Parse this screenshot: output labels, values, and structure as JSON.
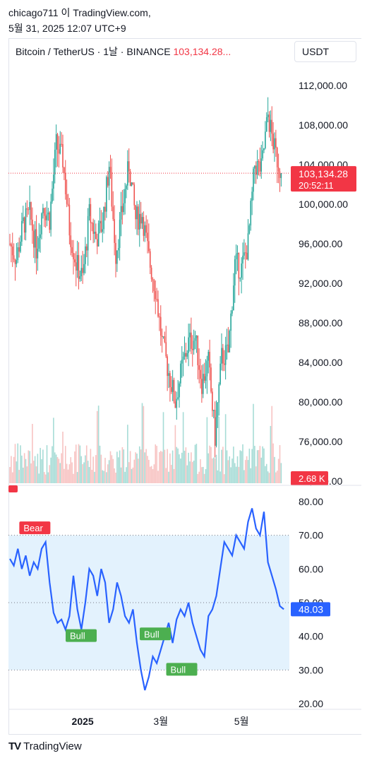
{
  "header": {
    "line1": "chicago711 이 TradingView.com,",
    "line2": "5월 31, 2025 12:07 UTC+9"
  },
  "symbol": {
    "name": "Bitcoin / TetherUS · 1날 · BINANCE",
    "price": "103,134.28..."
  },
  "currency_button": "USDT",
  "footer": {
    "logo_mark": "TV",
    "logo_text": "TradingView"
  },
  "colors": {
    "up": "#26a69a",
    "down": "#ef5350",
    "rsi_line": "#2962ff",
    "rsi_band": "#e3f2fd",
    "bear_label": "#f23645",
    "bull_label": "#4caf50"
  },
  "chart_data": [
    {
      "type": "candlestick",
      "title": "",
      "y_ticks": [
        "112,000.00",
        "108,000.00",
        "104,000.00",
        "100,000.00",
        "96,000.00",
        "92,000.00",
        "88,000.00",
        "84,000.00",
        "80,000.00",
        "76,000.00",
        "72,000.00"
      ],
      "ylim": [
        71800,
        113500
      ],
      "last_price_label": "103,134.28",
      "countdown_label": "20:52:11",
      "volume_label": "2.68 K",
      "x_ticks": [
        {
          "label": "2025",
          "day": 55
        },
        {
          "label": "3월",
          "day": 114
        },
        {
          "label": "5월",
          "day": 175
        }
      ],
      "x_range_days": [
        0,
        208
      ],
      "close_path": [
        [
          0,
          96000
        ],
        [
          5,
          94500
        ],
        [
          10,
          98000
        ],
        [
          15,
          99000
        ],
        [
          20,
          95500
        ],
        [
          25,
          100000
        ],
        [
          30,
          98500
        ],
        [
          35,
          106000
        ],
        [
          40,
          104500
        ],
        [
          45,
          97500
        ],
        [
          50,
          94000
        ],
        [
          55,
          92500
        ],
        [
          60,
          99000
        ],
        [
          65,
          96500
        ],
        [
          70,
          98000
        ],
        [
          75,
          104000
        ],
        [
          80,
          95000
        ],
        [
          85,
          99500
        ],
        [
          90,
          104000
        ],
        [
          95,
          98500
        ],
        [
          100,
          99000
        ],
        [
          105,
          94500
        ],
        [
          110,
          91500
        ],
        [
          115,
          86000
        ],
        [
          120,
          83000
        ],
        [
          125,
          80000
        ],
        [
          130,
          83500
        ],
        [
          135,
          86000
        ],
        [
          140,
          86500
        ],
        [
          145,
          82000
        ],
        [
          150,
          84000
        ],
        [
          155,
          76500
        ],
        [
          160,
          84500
        ],
        [
          165,
          85000
        ],
        [
          170,
          94000
        ],
        [
          175,
          93500
        ],
        [
          180,
          96000
        ],
        [
          185,
          104000
        ],
        [
          190,
          103500
        ],
        [
          195,
          109000
        ],
        [
          200,
          105500
        ],
        [
          205,
          103134
        ]
      ]
    },
    {
      "type": "line",
      "title": "",
      "y_ticks": [
        "80.00",
        "70.00",
        "60.00",
        "50.00",
        "40.00",
        "30.00",
        "20.00"
      ],
      "ylim": [
        20,
        80
      ],
      "band": [
        30,
        70
      ],
      "last_value_label": "48.03",
      "series": [
        {
          "values": [
            [
              0,
              63
            ],
            [
              3,
              61
            ],
            [
              6,
              66
            ],
            [
              9,
              60
            ],
            [
              12,
              64
            ],
            [
              15,
              58
            ],
            [
              18,
              62
            ],
            [
              21,
              60
            ],
            [
              24,
              66
            ],
            [
              27,
              68
            ],
            [
              30,
              56
            ],
            [
              33,
              47
            ],
            [
              36,
              44
            ],
            [
              39,
              45
            ],
            [
              42,
              42
            ],
            [
              45,
              46
            ],
            [
              48,
              58
            ],
            [
              51,
              48
            ],
            [
              54,
              42
            ],
            [
              57,
              50
            ],
            [
              60,
              60
            ],
            [
              63,
              58
            ],
            [
              66,
              52
            ],
            [
              69,
              60
            ],
            [
              72,
              56
            ],
            [
              75,
              44
            ],
            [
              78,
              48
            ],
            [
              81,
              56
            ],
            [
              84,
              52
            ],
            [
              87,
              46
            ],
            [
              90,
              44
            ],
            [
              93,
              48
            ],
            [
              96,
              38
            ],
            [
              99,
              30
            ],
            [
              102,
              24
            ],
            [
              105,
              28
            ],
            [
              108,
              34
            ],
            [
              111,
              32
            ],
            [
              114,
              36
            ],
            [
              117,
              40
            ],
            [
              120,
              44
            ],
            [
              123,
              38
            ],
            [
              126,
              45
            ],
            [
              129,
              48
            ],
            [
              132,
              46
            ],
            [
              135,
              50
            ],
            [
              138,
              44
            ],
            [
              141,
              40
            ],
            [
              144,
              36
            ],
            [
              147,
              34
            ],
            [
              150,
              46
            ],
            [
              153,
              48
            ],
            [
              156,
              52
            ],
            [
              159,
              60
            ],
            [
              162,
              68
            ],
            [
              165,
              66
            ],
            [
              168,
              64
            ],
            [
              171,
              70
            ],
            [
              174,
              68
            ],
            [
              177,
              66
            ],
            [
              180,
              74
            ],
            [
              183,
              78
            ],
            [
              186,
              72
            ],
            [
              189,
              70
            ],
            [
              192,
              77
            ],
            [
              195,
              62
            ],
            [
              198,
              58
            ],
            [
              201,
              54
            ],
            [
              204,
              49
            ],
            [
              207,
              48.03
            ]
          ]
        }
      ],
      "annotations": [
        {
          "text": "Bear",
          "day": 5,
          "value": 72,
          "kind": "bear"
        },
        {
          "text": "Bull",
          "day": 40,
          "value": 40,
          "kind": "bull"
        },
        {
          "text": "Bull",
          "day": 96,
          "value": 40.5,
          "kind": "bull"
        },
        {
          "text": "Bull",
          "day": 116,
          "value": 30,
          "kind": "bull"
        }
      ]
    }
  ]
}
